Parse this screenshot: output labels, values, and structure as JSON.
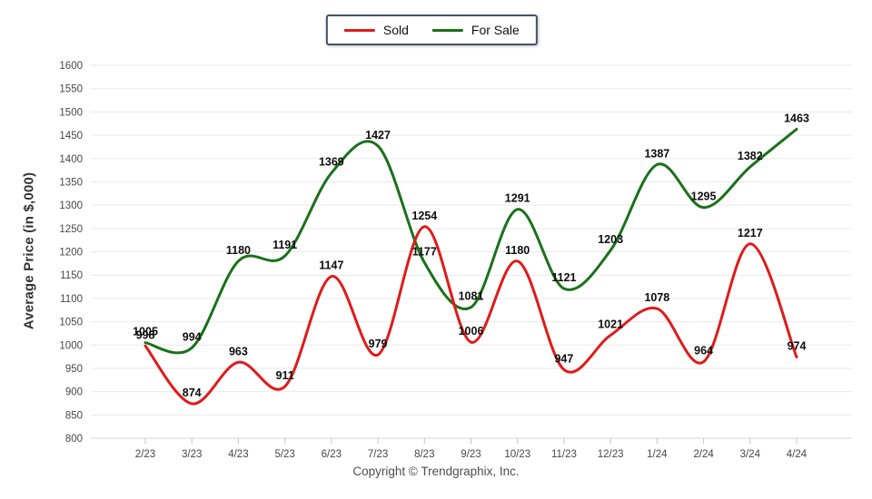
{
  "legend": {
    "items": [
      {
        "label": "Sold",
        "color": "#e01a1a"
      },
      {
        "label": "For Sale",
        "color": "#1a701a"
      }
    ]
  },
  "footer": {
    "copyright": "Copyright © Trendgraphix, Inc."
  },
  "chart_data": {
    "type": "line",
    "title": "",
    "xlabel": "",
    "ylabel": "Average Price (in $,000)",
    "ylim": [
      800,
      1600
    ],
    "ytick_step": 50,
    "grid": true,
    "legend_position": "top-center",
    "data_labels": true,
    "categories": [
      "2/23",
      "3/23",
      "4/23",
      "5/23",
      "6/23",
      "7/23",
      "8/23",
      "9/23",
      "10/23",
      "11/23",
      "12/23",
      "1/24",
      "2/24",
      "3/24",
      "4/24"
    ],
    "series": [
      {
        "name": "For Sale",
        "color": "#1a701a",
        "values": [
          1005,
          994,
          1180,
          1191,
          1369,
          1427,
          1177,
          1081,
          1291,
          1121,
          1203,
          1387,
          1295,
          1382,
          1463
        ]
      },
      {
        "name": "Sold",
        "color": "#e01a1a",
        "values": [
          998,
          874,
          963,
          911,
          1147,
          979,
          1254,
          1006,
          1180,
          947,
          1021,
          1078,
          964,
          1217,
          974
        ]
      }
    ]
  }
}
